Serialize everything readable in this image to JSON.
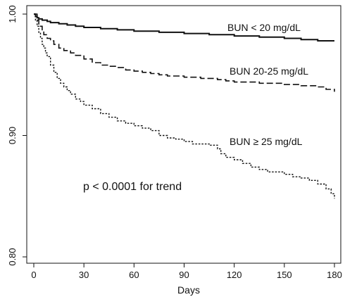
{
  "chart_data": {
    "type": "line",
    "title": "",
    "xlabel": "Days",
    "ylabel": "",
    "xlim": [
      0,
      180
    ],
    "ylim": [
      0.8,
      1.0
    ],
    "x_ticks": [
      "0",
      "30",
      "60",
      "90",
      "120",
      "150",
      "180"
    ],
    "y_ticks": [
      "0.80",
      "0.90",
      "1.00"
    ],
    "grid": false,
    "legend": "none",
    "annotation": "p < 0.0001 for trend",
    "series": [
      {
        "name": "BUN < 20 mg/dL",
        "style": "solid",
        "x": [
          0,
          1,
          2,
          3,
          5,
          8,
          10,
          15,
          20,
          25,
          30,
          40,
          50,
          60,
          75,
          90,
          105,
          120,
          135,
          150,
          160,
          170,
          180
        ],
        "y": [
          1.0,
          0.998,
          0.997,
          0.996,
          0.995,
          0.994,
          0.993,
          0.992,
          0.991,
          0.99,
          0.989,
          0.988,
          0.987,
          0.986,
          0.985,
          0.984,
          0.983,
          0.982,
          0.981,
          0.98,
          0.979,
          0.978,
          0.978
        ]
      },
      {
        "name": "BUN 20-25 mg/dL",
        "style": "dashed",
        "x": [
          0,
          2,
          3,
          5,
          6,
          8,
          10,
          12,
          15,
          18,
          22,
          25,
          30,
          35,
          40,
          45,
          50,
          55,
          60,
          65,
          70,
          75,
          80,
          90,
          100,
          110,
          115,
          120,
          135,
          150,
          160,
          170,
          175,
          180
        ],
        "y": [
          1.0,
          0.995,
          0.99,
          0.986,
          0.983,
          0.98,
          0.978,
          0.975,
          0.972,
          0.97,
          0.968,
          0.966,
          0.963,
          0.96,
          0.958,
          0.957,
          0.956,
          0.954,
          0.953,
          0.952,
          0.951,
          0.95,
          0.949,
          0.948,
          0.947,
          0.946,
          0.945,
          0.944,
          0.943,
          0.942,
          0.941,
          0.94,
          0.938,
          0.936
        ]
      },
      {
        "name": "BUN ≥ 25 mg/dL",
        "style": "dotted",
        "x": [
          0,
          1,
          2,
          3,
          4,
          5,
          6,
          7,
          8,
          10,
          12,
          14,
          16,
          18,
          20,
          22,
          25,
          28,
          30,
          35,
          40,
          45,
          50,
          55,
          60,
          65,
          70,
          75,
          80,
          85,
          90,
          95,
          100,
          105,
          110,
          112,
          115,
          120,
          125,
          130,
          135,
          140,
          150,
          155,
          160,
          165,
          170,
          175,
          178,
          180
        ],
        "y": [
          1.0,
          0.995,
          0.99,
          0.985,
          0.98,
          0.975,
          0.972,
          0.968,
          0.965,
          0.958,
          0.952,
          0.947,
          0.943,
          0.94,
          0.937,
          0.934,
          0.93,
          0.928,
          0.925,
          0.922,
          0.918,
          0.915,
          0.912,
          0.91,
          0.908,
          0.906,
          0.904,
          0.9,
          0.898,
          0.897,
          0.895,
          0.893,
          0.893,
          0.892,
          0.889,
          0.885,
          0.882,
          0.88,
          0.877,
          0.874,
          0.872,
          0.87,
          0.868,
          0.866,
          0.865,
          0.863,
          0.86,
          0.856,
          0.852,
          0.848
        ]
      }
    ]
  }
}
